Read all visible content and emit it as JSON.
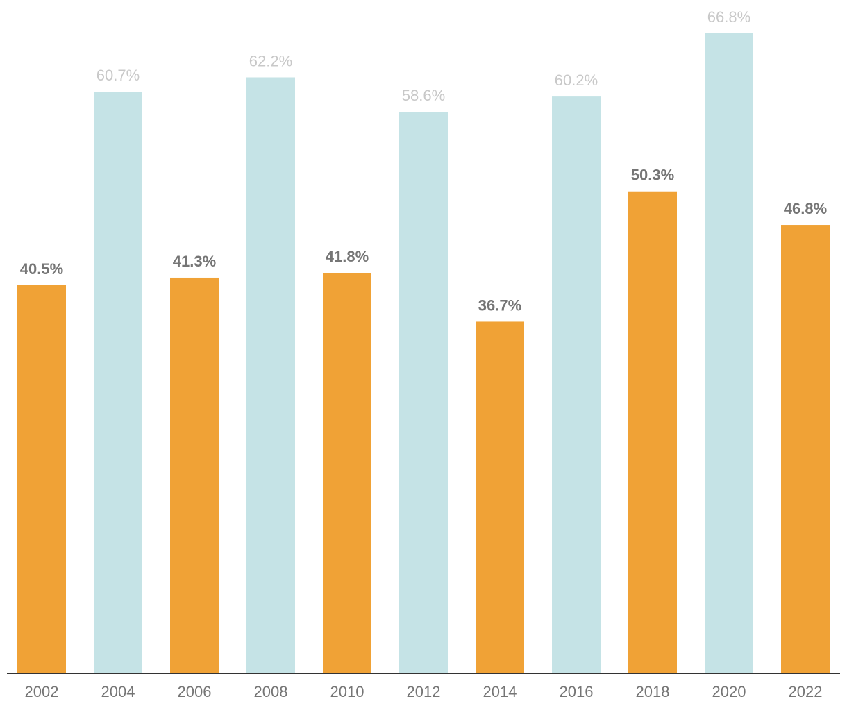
{
  "chart_data": {
    "type": "bar",
    "categories": [
      "2002",
      "2004",
      "2006",
      "2008",
      "2010",
      "2012",
      "2014",
      "2016",
      "2018",
      "2020",
      "2022"
    ],
    "values": [
      40.5,
      60.7,
      41.3,
      62.2,
      41.8,
      58.6,
      36.7,
      60.2,
      50.3,
      66.8,
      46.8
    ],
    "data_labels": [
      "40.5%",
      "60.7%",
      "41.3%",
      "62.2%",
      "41.8%",
      "58.6%",
      "36.7%",
      "60.2%",
      "50.3%",
      "66.8%",
      "46.8%"
    ],
    "bar_kind": [
      "midterm",
      "presidential",
      "midterm",
      "presidential",
      "midterm",
      "presidential",
      "midterm",
      "presidential",
      "midterm",
      "presidential",
      "midterm"
    ],
    "title": "",
    "xlabel": "",
    "ylabel": "",
    "ylim": [
      0,
      66.8
    ],
    "grid": false,
    "legend": "none",
    "colors": {
      "midterm_bar": "#f0a236",
      "presidential_bar": "#c5e3e6",
      "midterm_label": "#757575",
      "presidential_label": "#c8c8c8",
      "axis_line": "#333333",
      "tick_label": "#757575"
    }
  }
}
